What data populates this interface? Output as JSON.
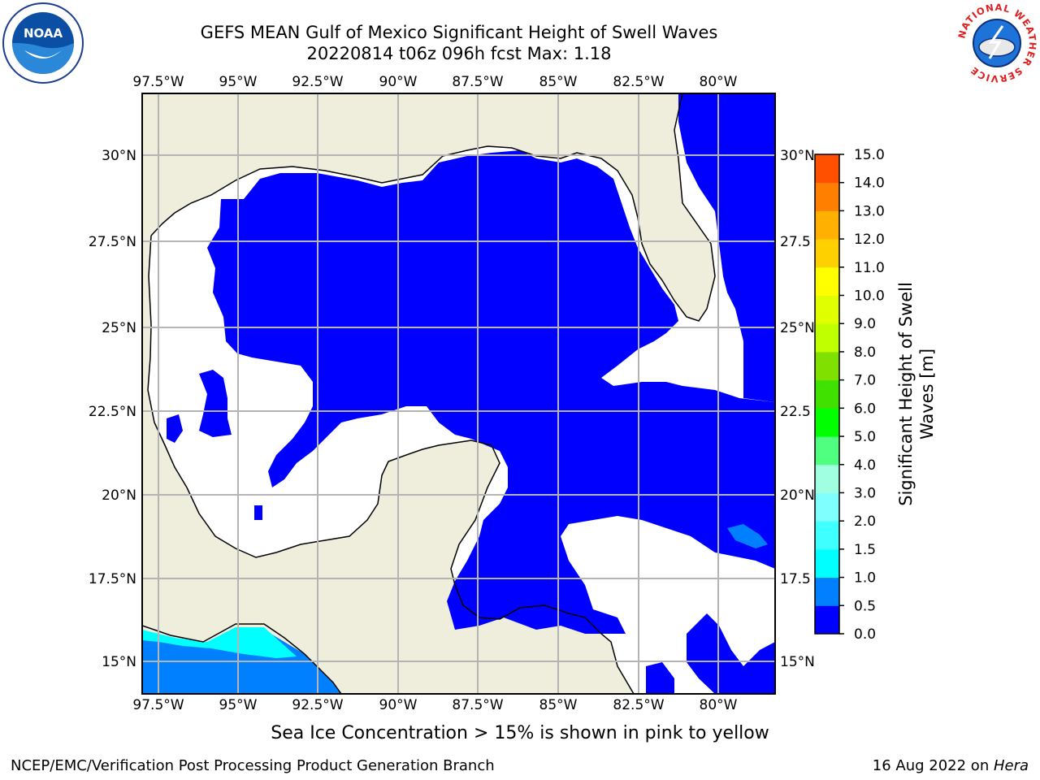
{
  "title": {
    "line1": "GEFS MEAN Gulf of Mexico Significant Height of Swell Waves",
    "line2": "20220814 t06z 096h fcst   Max: 1.18"
  },
  "map": {
    "lon_ticks": [
      "97.5°W",
      "95°W",
      "92.5°W",
      "90°W",
      "87.5°W",
      "85°W",
      "82.5°W",
      "80°W"
    ],
    "lat_ticks_left": [
      "30°N",
      "27.5°N",
      "25°N",
      "22.5°N",
      "20°N",
      "17.5°N",
      "15°N"
    ],
    "lat_ticks_right": [
      "30°N",
      "27.5",
      "25°N",
      "22.5",
      "20°N",
      "17.5",
      "15°N"
    ],
    "land_color": "#efeedc",
    "ocean_color": "#0000ff",
    "grid_color": "#b4b4b4"
  },
  "colorbar": {
    "labels": [
      "0.0",
      "0.5",
      "1.0",
      "1.5",
      "2.0",
      "3.0",
      "4.0",
      "5.0",
      "6.0",
      "7.0",
      "8.0",
      "9.0",
      "10.0",
      "11.0",
      "12.0",
      "13.0",
      "14.0",
      "15.0"
    ],
    "colors": [
      "#0000ff",
      "#0080ff",
      "#00ffff",
      "#40ffff",
      "#80ffff",
      "#a0ffe0",
      "#50ff80",
      "#00ff00",
      "#40e000",
      "#80e000",
      "#c0ff00",
      "#e0ff00",
      "#ffff00",
      "#ffd000",
      "#ffb000",
      "#ff8000",
      "#ff5000",
      "#ff2000",
      "#ff0000"
    ],
    "title_line1": "Significant Height of Swell",
    "title_line2": "Waves [m]"
  },
  "logos": {
    "noaa_text": "NOAA",
    "nws_ring_text": "NATIONAL WEATHER SERVICE"
  },
  "footer": {
    "note": "Sea Ice Concentration > 15% is shown in pink to yellow",
    "left": "NCEP/EMC/Verification Post Processing Product Generation Branch",
    "right_date": "16 Aug 2022 on ",
    "right_host": "Hera"
  }
}
